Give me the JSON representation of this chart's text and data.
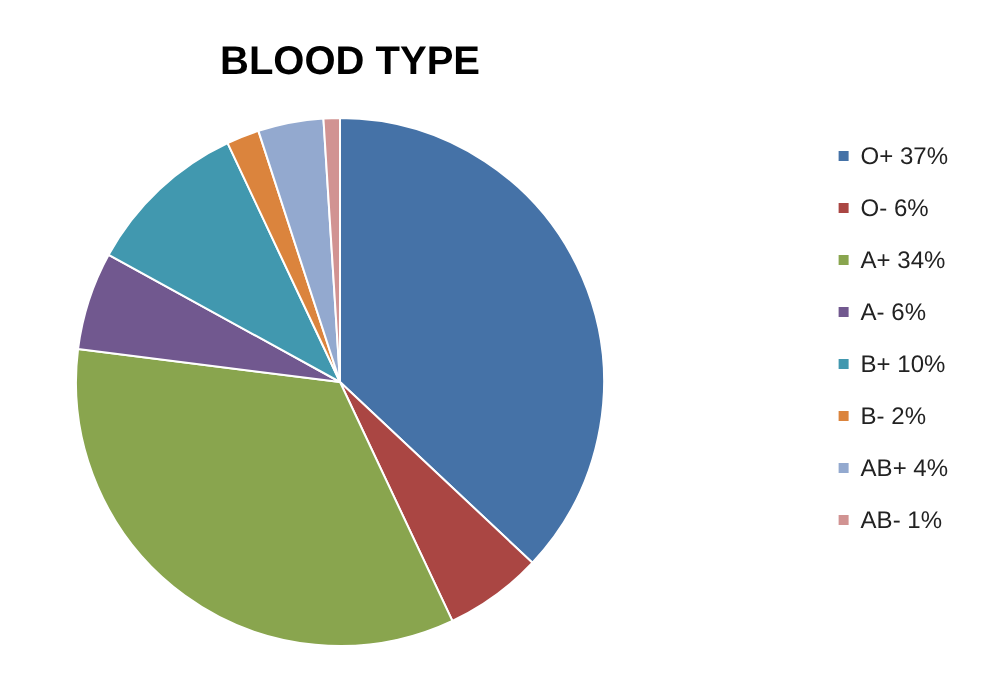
{
  "chart_data": {
    "type": "pie",
    "title": "BLOOD TYPE",
    "categories": [
      "O+ 37%",
      "O- 6%",
      "A+ 34%",
      "A- 6%",
      "B+ 10%",
      "B- 2%",
      "AB+ 4%",
      "AB- 1%"
    ],
    "values": [
      37,
      6,
      34,
      6,
      10,
      2,
      4,
      1
    ],
    "colors": [
      "#4572a7",
      "#aa4643",
      "#89a54e",
      "#71588f",
      "#4198af",
      "#db843d",
      "#93a9cf",
      "#d19392"
    ],
    "legend": "right"
  }
}
